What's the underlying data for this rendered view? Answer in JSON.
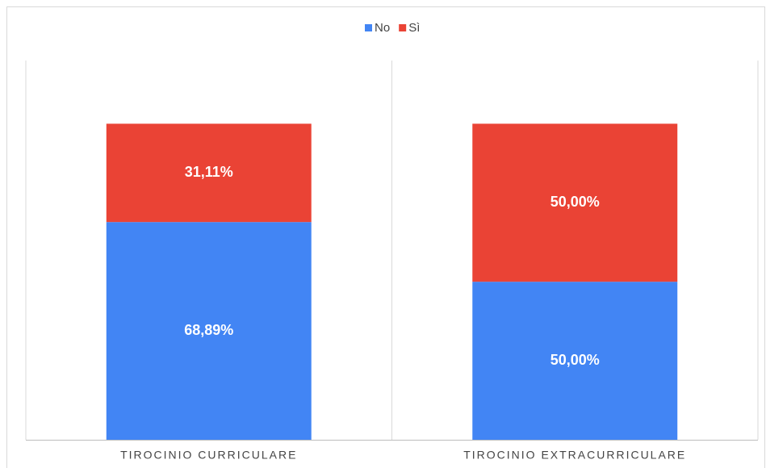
{
  "chart_data": {
    "type": "stacked_bar_100",
    "categories": [
      "TIROCINIO CURRICULARE",
      "TIROCINIO EXTRACURRICULARE"
    ],
    "series": [
      {
        "name": "No",
        "color": "#4285f4",
        "values": [
          68.89,
          50.0
        ],
        "value_labels": [
          "68,89%",
          "50,00%"
        ]
      },
      {
        "name": "Sì",
        "color": "#ea4335",
        "values": [
          31.11,
          50.0
        ],
        "value_labels": [
          "31,11%",
          "50,00%"
        ]
      }
    ],
    "ylim": [
      0,
      120
    ],
    "legend": "top"
  }
}
